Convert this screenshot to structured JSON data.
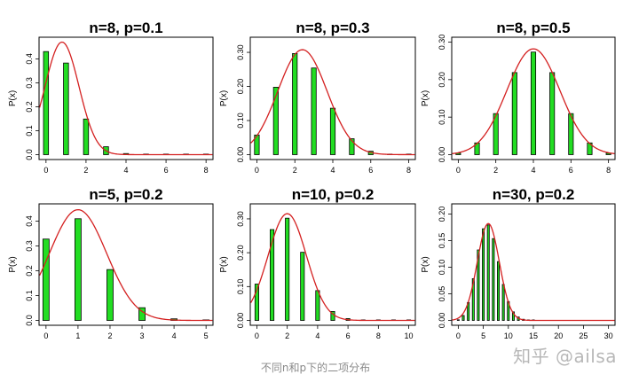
{
  "chart_data": [
    {
      "type": "bar",
      "title": "n=8, p=0.1",
      "ylabel": "P(x)",
      "n": 8,
      "p": 0.1,
      "x": [
        0,
        1,
        2,
        3,
        4,
        5,
        6,
        7,
        8
      ],
      "values": [
        0.4305,
        0.3826,
        0.1488,
        0.0331,
        0.0046,
        0.0004,
        0,
        0,
        0
      ],
      "xlim": [
        0,
        8
      ],
      "ylim": [
        0,
        0.47
      ],
      "xticks": [
        "0",
        "2",
        "4",
        "6",
        "8"
      ],
      "yticks": [
        "0.0",
        "0.1",
        "0.2",
        "0.3",
        "0.4"
      ],
      "curve": "normal approximation",
      "bar_color": "#22dd22",
      "curve_color": "#d42020"
    },
    {
      "type": "bar",
      "title": "n=8, p=0.3",
      "ylabel": "P(x)",
      "n": 8,
      "p": 0.3,
      "x": [
        0,
        1,
        2,
        3,
        4,
        5,
        6,
        7,
        8
      ],
      "values": [
        0.0576,
        0.1977,
        0.2965,
        0.2541,
        0.1361,
        0.0467,
        0.01,
        0.0012,
        0.0001
      ],
      "xlim": [
        0,
        8
      ],
      "ylim": [
        0,
        0.33
      ],
      "xticks": [
        "0",
        "2",
        "4",
        "6",
        "8"
      ],
      "yticks": [
        "0.00",
        "0.10",
        "0.20",
        "0.30"
      ],
      "curve": "normal approximation",
      "bar_color": "#22dd22",
      "curve_color": "#d42020"
    },
    {
      "type": "bar",
      "title": "n=8, p=0.5",
      "ylabel": "P(x)",
      "n": 8,
      "p": 0.5,
      "x": [
        0,
        1,
        2,
        3,
        4,
        5,
        6,
        7,
        8
      ],
      "values": [
        0.0039,
        0.0313,
        0.1094,
        0.2188,
        0.2734,
        0.2188,
        0.1094,
        0.0313,
        0.0039
      ],
      "xlim": [
        0,
        8
      ],
      "ylim": [
        0,
        0.3
      ],
      "xticks": [
        "0",
        "2",
        "4",
        "6",
        "8"
      ],
      "yticks": [
        "0.00",
        "0.10",
        "0.20",
        "0.30"
      ],
      "curve": "normal approximation",
      "bar_color": "#22dd22",
      "curve_color": "#d42020"
    },
    {
      "type": "bar",
      "title": "n=5, p=0.2",
      "ylabel": "P(x)",
      "n": 5,
      "p": 0.2,
      "x": [
        0,
        1,
        2,
        3,
        4,
        5
      ],
      "values": [
        0.3277,
        0.4096,
        0.2048,
        0.0512,
        0.0064,
        0.0003
      ],
      "xlim": [
        0,
        5
      ],
      "ylim": [
        0,
        0.45
      ],
      "xticks": [
        "0",
        "1",
        "2",
        "3",
        "4",
        "5"
      ],
      "yticks": [
        "0.0",
        "0.1",
        "0.2",
        "0.3",
        "0.4"
      ],
      "curve": "normal approximation",
      "bar_color": "#22dd22",
      "curve_color": "#d42020"
    },
    {
      "type": "bar",
      "title": "n=10, p=0.2",
      "ylabel": "P(x)",
      "n": 10,
      "p": 0.2,
      "x": [
        0,
        1,
        2,
        3,
        4,
        5,
        6,
        7,
        8,
        9,
        10
      ],
      "values": [
        0.1074,
        0.2684,
        0.302,
        0.2013,
        0.0881,
        0.0264,
        0.0055,
        0.0008,
        0.0001,
        0,
        0
      ],
      "xlim": [
        0,
        10
      ],
      "ylim": [
        0,
        0.33
      ],
      "xticks": [
        "0",
        "2",
        "4",
        "6",
        "8",
        "10"
      ],
      "yticks": [
        "0.00",
        "0.10",
        "0.20",
        "0.30"
      ],
      "curve": "normal approximation",
      "bar_color": "#22dd22",
      "curve_color": "#d42020"
    },
    {
      "type": "bar",
      "title": "n=30, p=0.2",
      "ylabel": "P(x)",
      "n": 30,
      "p": 0.2,
      "x": [
        0,
        1,
        2,
        3,
        4,
        5,
        6,
        7,
        8,
        9,
        10,
        11,
        12,
        13,
        14,
        15
      ],
      "values": [
        0.0012,
        0.0093,
        0.0337,
        0.0785,
        0.1325,
        0.1723,
        0.1795,
        0.1538,
        0.1106,
        0.0676,
        0.0355,
        0.0161,
        0.0064,
        0.0022,
        0.0007,
        0.0002
      ],
      "xlim": [
        0,
        30
      ],
      "ylim": [
        0,
        0.21
      ],
      "xticks": [
        "0",
        "5",
        "10",
        "15",
        "20",
        "25",
        "30"
      ],
      "yticks": [
        "0.00",
        "0.05",
        "0.10",
        "0.15",
        "0.20"
      ],
      "curve": "normal approximation",
      "bar_color": "#22dd22",
      "curve_color": "#d42020"
    }
  ],
  "caption": "不同n和p下的二项分布",
  "watermark": "知乎 @ailsa"
}
